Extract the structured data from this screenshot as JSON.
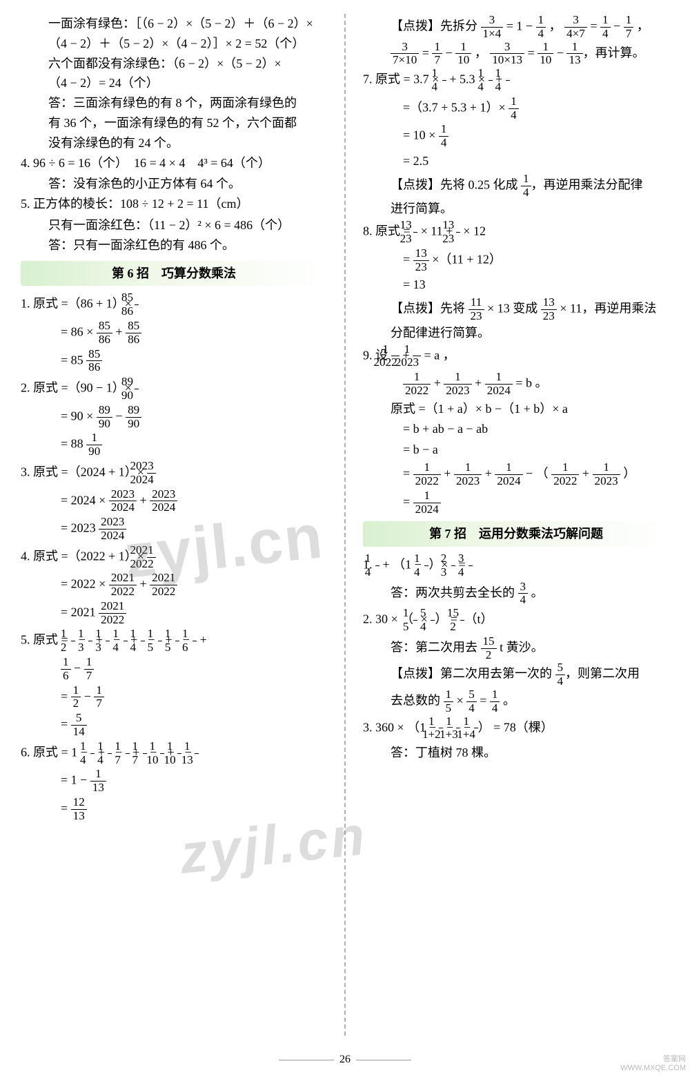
{
  "leftCol": {
    "l1": "一面涂有绿色：［（6 − 2）×（5 − 2）＋（6 − 2）×",
    "l2": "（4 − 2）＋（5 − 2）×（4 − 2）］× 2 = 52（个）",
    "l3": "六个面都没有涂绿色：（6 − 2）×（5 − 2）×",
    "l4": "（4 − 2）= 24（个）",
    "l5": "答：三面涂有绿色的有 8 个，两面涂有绿色的",
    "l6": "有 36 个，一面涂有绿色的有 52 个，六个面都",
    "l7": "没有涂绿色的有 24 个。",
    "l8": "4.  96 ÷ 6 = 16（个）　16 = 4 × 4　4³ = 64（个）",
    "l9": "答：没有涂色的小正方体有 64 个。",
    "l10": "5.  正方体的棱长：108 ÷ 12 + 2 = 11（cm）",
    "l11": "只有一面涂红色：（11 − 2）² × 6 = 486（个）",
    "l12": "答：只有一面涂红色的有 486 个。",
    "banner1": "第 6 招　巧算分数乘法",
    "q1": {
      "pre": "1.  原式 =（86 + 1）× ",
      "fn": "85",
      "fd": "86",
      "s1n1": "85",
      "s1d1": "86",
      "s1n2": "85",
      "s1d2": "86",
      "rn": "85",
      "rd": "86",
      "rw": "= 85 "
    },
    "q2": {
      "pre": "2.  原式 =（90 − 1）× ",
      "fn": "89",
      "fd": "90",
      "s1n1": "89",
      "s1d1": "90",
      "s1n2": "89",
      "s1d2": "90",
      "rw": "= 88 ",
      "rn": "1",
      "rd": "90"
    },
    "q3": {
      "pre": "3.  原式 =（2024 + 1）× ",
      "fn": "2023",
      "fd": "2024",
      "s1n1": "2023",
      "s1d1": "2024",
      "s1n2": "2023",
      "s1d2": "2024",
      "rw": "= 2023 ",
      "rn": "2023",
      "rd": "2024"
    },
    "q4": {
      "pre": "4.  原式 =（2022 + 1）× ",
      "fn": "2021",
      "fd": "2022",
      "s1n1": "2021",
      "s1d1": "2022",
      "s1n2": "2021",
      "s1d2": "2022",
      "rw": "= 2021 ",
      "rn": "2021",
      "rd": "2022"
    },
    "q5": {
      "head": "5.  原式 = ",
      "tA": [
        "1",
        "2",
        "1",
        "3",
        "1",
        "3",
        "1",
        "4",
        "1",
        "4",
        "1",
        "5",
        "1",
        "5",
        "1",
        "6"
      ],
      "tB": [
        "1",
        "6",
        "1",
        "7"
      ],
      "r1": [
        "1",
        "2",
        "1",
        "7"
      ],
      "r2": [
        "5",
        "14"
      ]
    },
    "q6": {
      "head": "6.  原式 = 1 − ",
      "t": [
        "1",
        "4",
        "1",
        "4",
        "1",
        "7",
        "1",
        "7",
        "1",
        "10",
        "1",
        "10",
        "1",
        "13"
      ],
      "r1": [
        "1",
        "13"
      ],
      "r2": [
        "12",
        "13"
      ]
    }
  },
  "rightCol": {
    "dp1": "【点拨】先拆分 ",
    "dp1f": [
      [
        "3",
        "1×4"
      ],
      [
        "1",
        "4"
      ],
      [
        "3",
        "4×7"
      ],
      [
        "1",
        "4"
      ],
      [
        "1",
        "7"
      ]
    ],
    "dp2f": [
      [
        "3",
        "7×10"
      ],
      [
        "1",
        "7"
      ],
      [
        "1",
        "10"
      ],
      [
        "3",
        "10×13"
      ],
      [
        "1",
        "10"
      ],
      [
        "1",
        "13"
      ]
    ],
    "dp2tail": "，再计算。",
    "q7": {
      "h": "7.  原式 = 3.7 × ",
      "f": [
        "1",
        "4"
      ],
      "m1": " + 5.3 × ",
      "m2": " + ",
      "s1": "=（3.7 + 5.3 + 1）× ",
      "s2": "= 10 × ",
      "s3": "= 2.5"
    },
    "dp3": "【点拨】先将 0.25 化成 ",
    "dp3f": [
      "1",
      "4"
    ],
    "dp3b": "，再逆用乘法分配律",
    "dp3c": "进行简算。",
    "q8": {
      "h": "8.  原式 = ",
      "f": [
        "13",
        "23"
      ],
      "m1": " × 11 + ",
      "m2": " × 12",
      "s1": " ×（11 + 12）",
      "s2": "= 13"
    },
    "dp4": "【点拨】先将 ",
    "dp4f1": [
      "11",
      "23"
    ],
    "dp4m": " × 13 变成 ",
    "dp4f2": [
      "13",
      "23"
    ],
    "dp4b": " × 11，再逆用乘法",
    "dp4c": "分配律进行简算。",
    "q9": {
      "h": "9.  设 ",
      "f1": [
        "1",
        "2022"
      ],
      "f2": [
        "1",
        "2023"
      ],
      "ta": " = a ，",
      "b1": [
        "1",
        "2022"
      ],
      "b2": [
        "1",
        "2023"
      ],
      "b3": [
        "1",
        "2024"
      ],
      "tb": " = b 。",
      "l1": "原式 =（1 + a）× b −（1 + b）× a",
      "l2": "= b + ab − a − ab",
      "l3": "= b − a",
      "r": [
        [
          "1",
          "2022"
        ],
        [
          "1",
          "2023"
        ],
        [
          "1",
          "2024"
        ],
        [
          "1",
          "2022"
        ],
        [
          "1",
          "2023"
        ]
      ],
      "rf": [
        "1",
        "2024"
      ]
    },
    "banner2": "第 7 招　运用分数乘法巧解问题",
    "p1": {
      "h": "1.  ",
      "f1": [
        "1",
        "4"
      ],
      "m1": " + （1 − ",
      "f2": [
        "1",
        "4"
      ],
      "m2": "）× ",
      "f3": [
        "2",
        "3"
      ],
      "eq": " = ",
      "f4": [
        "3",
        "4"
      ],
      "ans": "答：两次共剪去全长的 ",
      "af": [
        "3",
        "4"
      ],
      "tail": " 。"
    },
    "p2": {
      "h": "2.  30 × （",
      "f1": [
        "1",
        "5"
      ],
      "m": " × ",
      "f2": [
        "5",
        "4"
      ],
      "c": "） = ",
      "f3": [
        "15",
        "2"
      ],
      "t": "（t）",
      "ans": "答：第二次用去 ",
      "af": [
        "15",
        "2"
      ],
      "tail": " t 黄沙。"
    },
    "dp5": "【点拨】第二次用去第一次的 ",
    "dp5f": [
      "5",
      "4"
    ],
    "dp5b": "，则第二次用",
    "dp5c": "去总数的 ",
    "dp5f2": [
      "1",
      "5"
    ],
    "dp5m": " × ",
    "dp5f3": [
      "5",
      "4"
    ],
    "dp5eq": " = ",
    "dp5f4": [
      "1",
      "4"
    ],
    "dp5t": " 。",
    "p3": {
      "h": "3.  360 × （1 − ",
      "f1": [
        "1",
        "1+2"
      ],
      "m1": " − ",
      "f2": [
        "1",
        "1+3"
      ],
      "m2": " − ",
      "f3": [
        "1",
        "1+4"
      ],
      "c": "） = 78（棵）",
      "ans": "答：丁植树 78 棵。"
    }
  },
  "pageNum": "26",
  "corner1": "答案网",
  "corner2": "WWW.MXQE.COM"
}
